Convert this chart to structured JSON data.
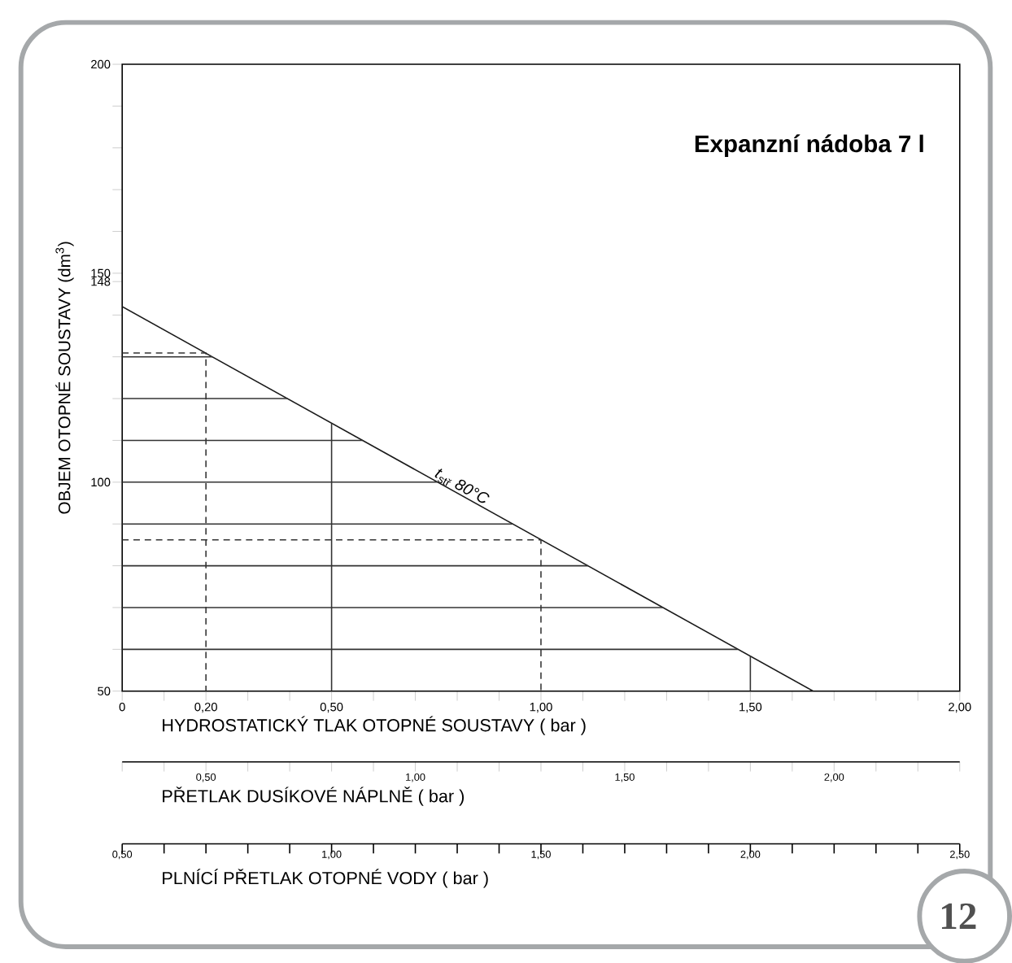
{
  "chart_data": {
    "type": "line",
    "title": "Expanzní nádoba 7 l",
    "xlabel": "HYDROSTATICKÝ TLAK OTOPNÉ SOUSTAVY ( bar )",
    "ylabel": "OBJEM OTOPNÉ SOUSTAVY (dm$^{3}$)",
    "x2label": "PŘETLAK DUSÍKOVÉ NÁPLNĚ ( bar )",
    "xlim": [
      0,
      2.0
    ],
    "ylim": [
      50,
      200
    ],
    "x2lim": [
      0.3,
      2.3
    ],
    "xticks": [
      {
        "value": 0,
        "label": "0"
      },
      {
        "value": 0.1,
        "label": null
      },
      {
        "value": 0.2,
        "label": "0,20"
      },
      {
        "value": 0.3,
        "label": null
      },
      {
        "value": 0.4,
        "label": null
      },
      {
        "value": 0.5,
        "label": "0,50"
      },
      {
        "value": 0.6,
        "label": null
      },
      {
        "value": 0.7,
        "label": null
      },
      {
        "value": 0.8,
        "label": null
      },
      {
        "value": 0.9,
        "label": null
      },
      {
        "value": 1.0,
        "label": "1,00"
      },
      {
        "value": 1.1,
        "label": null
      },
      {
        "value": 1.2,
        "label": null
      },
      {
        "value": 1.3,
        "label": null
      },
      {
        "value": 1.4,
        "label": null
      },
      {
        "value": 1.5,
        "label": "1,50"
      },
      {
        "value": 1.6,
        "label": null
      },
      {
        "value": 1.7,
        "label": null
      },
      {
        "value": 1.8,
        "label": null
      },
      {
        "value": 1.9,
        "label": null
      },
      {
        "value": 2.0,
        "label": "2,00"
      }
    ],
    "x2ticks": [
      {
        "value": 0.3,
        "label": null
      },
      {
        "value": 0.4,
        "label": null
      },
      {
        "value": 0.5,
        "label": "0,50"
      },
      {
        "value": 0.6,
        "label": null
      },
      {
        "value": 0.7,
        "label": null
      },
      {
        "value": 0.8,
        "label": null
      },
      {
        "value": 0.9,
        "label": null
      },
      {
        "value": 1.0,
        "label": "1,00"
      },
      {
        "value": 1.1,
        "label": null
      },
      {
        "value": 1.2,
        "label": null
      },
      {
        "value": 1.3,
        "label": null
      },
      {
        "value": 1.4,
        "label": null
      },
      {
        "value": 1.5,
        "label": "1,50"
      },
      {
        "value": 1.6,
        "label": null
      },
      {
        "value": 1.7,
        "label": null
      },
      {
        "value": 1.8,
        "label": null
      },
      {
        "value": 1.9,
        "label": null
      },
      {
        "value": 2.0,
        "label": "2,00"
      },
      {
        "value": 2.1,
        "label": null
      },
      {
        "value": 2.2,
        "label": null
      },
      {
        "value": 2.3,
        "label": null
      }
    ],
    "yticks": [
      50,
      {
        "value": 60,
        "label": null
      },
      {
        "value": 70,
        "label": null
      },
      {
        "value": 80,
        "label": null
      },
      {
        "value": 90,
        "label": null
      },
      100,
      {
        "value": 110,
        "label": null
      },
      {
        "value": 120,
        "label": null
      },
      {
        "value": 130,
        "label": null
      },
      {
        "value": 140,
        "label": null
      },
      148,
      150,
      {
        "value": 160,
        "label": null
      },
      {
        "value": 170,
        "label": null
      },
      {
        "value": 180,
        "label": null
      },
      {
        "value": 190,
        "label": null
      },
      200
    ],
    "grid": false,
    "marker": "none",
    "series": [
      {
        "color": "#1a1a1a",
        "x": [
          0,
          1.65
        ],
        "values": [
          142,
          50
        ],
        "line_style": "solid"
      },
      {
        "color": "#333333",
        "x": [
          0,
          0.215
        ],
        "values": [
          130,
          130
        ],
        "line_style": "solid"
      },
      {
        "color": "#333333",
        "x": [
          0,
          0.395
        ],
        "values": [
          120,
          120
        ],
        "line_style": "solid"
      },
      {
        "color": "#333333",
        "x": [
          0,
          0.574
        ],
        "values": [
          110,
          110
        ],
        "line_style": "solid"
      },
      {
        "color": "#333333",
        "x": [
          0,
          0.753
        ],
        "values": [
          100,
          100
        ],
        "line_style": "solid"
      },
      {
        "color": "#333333",
        "x": [
          0,
          0.933
        ],
        "values": [
          90,
          90
        ],
        "line_style": "solid"
      },
      {
        "color": "#333333",
        "x": [
          0,
          1.112
        ],
        "values": [
          80,
          80
        ],
        "line_style": "solid"
      },
      {
        "color": "#333333",
        "x": [
          0,
          1.291
        ],
        "values": [
          70,
          70
        ],
        "line_style": "solid"
      },
      {
        "color": "#333333",
        "x": [
          0,
          1.47
        ],
        "values": [
          60,
          60
        ],
        "line_style": "solid"
      },
      {
        "color": "#333333",
        "x": [
          0.5,
          0.5
        ],
        "values": [
          50,
          114.1
        ],
        "line_style": "solid"
      },
      {
        "color": "#333333",
        "x": [
          1.5,
          1.5
        ],
        "values": [
          50,
          58.4
        ],
        "line_style": "solid"
      },
      {
        "color": "#333333",
        "x": [
          0,
          0.2,
          0.2
        ],
        "values": [
          130.9,
          130.9,
          50
        ],
        "line_style": "dashed"
      },
      {
        "color": "#333333",
        "x": [
          0,
          1.0,
          1.0
        ],
        "values": [
          86.2,
          86.2,
          50
        ],
        "line_style": "dashed"
      }
    ],
    "annotations": [
      {
        "text": "*t*$_{stř}$ *80°C*",
        "x": 0.8,
        "y": 97
      },
      "PLNÍCÍ PŘETLAK OTOPNÉ VODY ( bar )",
      "0,50",
      "1,00",
      "1,50",
      "2,00",
      "2,50",
      "12"
    ]
  }
}
